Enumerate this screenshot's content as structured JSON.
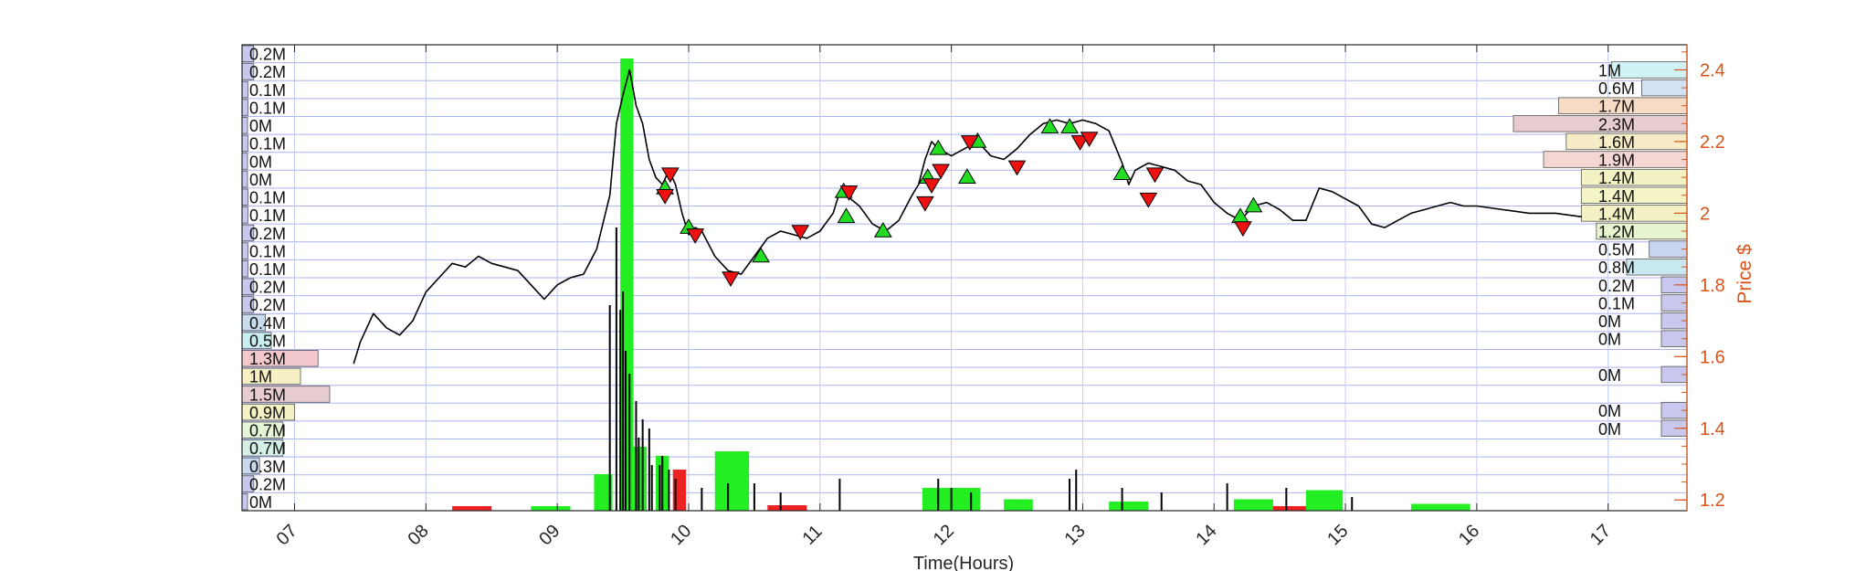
{
  "chart_data": {
    "type": "line",
    "title": "",
    "xlabel": "Time(Hours)",
    "ylabel": "Price $",
    "xlim": [
      6.6,
      17.6
    ],
    "ylim": [
      1.17,
      2.47
    ],
    "grid": true,
    "x_ticks": [
      7,
      8,
      9,
      10,
      11,
      12,
      13,
      14,
      15,
      16,
      17
    ],
    "x_tick_labels": [
      "07",
      "08",
      "09",
      "10",
      "11",
      "12",
      "13",
      "14",
      "15",
      "16",
      "17"
    ],
    "y_ticks": [
      1.2,
      1.4,
      1.6,
      1.8,
      2.0,
      2.2,
      2.4
    ],
    "y_tick_labels": [
      "1.2",
      "1.4",
      "1.6",
      "1.8",
      "2",
      "2.2",
      "2.4"
    ],
    "colors": {
      "axis_right": "#d95319",
      "grid_line": "#aab4f0",
      "buy": "#22dd22",
      "sell": "#ee1111",
      "volume_up": "#22ee22",
      "volume_down": "#ee2222",
      "price": "#000000"
    },
    "price_series": {
      "name": "",
      "x": [
        7.45,
        7.5,
        7.6,
        7.7,
        7.8,
        7.9,
        8.0,
        8.1,
        8.2,
        8.3,
        8.4,
        8.5,
        8.6,
        8.7,
        8.8,
        8.9,
        9.0,
        9.1,
        9.2,
        9.3,
        9.4,
        9.45,
        9.5,
        9.55,
        9.6,
        9.65,
        9.7,
        9.75,
        9.8,
        9.85,
        9.9,
        9.95,
        10.0,
        10.05,
        10.1,
        10.2,
        10.3,
        10.4,
        10.5,
        10.6,
        10.7,
        10.8,
        10.9,
        11.0,
        11.1,
        11.15,
        11.2,
        11.3,
        11.4,
        11.5,
        11.6,
        11.7,
        11.75,
        11.8,
        11.85,
        11.9,
        12.0,
        12.1,
        12.2,
        12.3,
        12.4,
        12.5,
        12.6,
        12.7,
        12.8,
        12.9,
        13.0,
        13.1,
        13.2,
        13.3,
        13.35,
        13.4,
        13.5,
        13.6,
        13.7,
        13.8,
        13.9,
        14.0,
        14.1,
        14.2,
        14.3,
        14.4,
        14.5,
        14.6,
        14.7,
        14.8,
        14.9,
        15.0,
        15.1,
        15.2,
        15.3,
        15.4,
        15.5,
        15.6,
        15.7,
        15.8,
        15.9,
        16.0,
        16.2,
        16.4,
        16.6,
        16.8
      ],
      "y": [
        1.58,
        1.64,
        1.72,
        1.68,
        1.66,
        1.7,
        1.78,
        1.82,
        1.86,
        1.85,
        1.88,
        1.86,
        1.85,
        1.84,
        1.8,
        1.76,
        1.8,
        1.82,
        1.83,
        1.9,
        2.05,
        2.25,
        2.33,
        2.4,
        2.3,
        2.25,
        2.15,
        2.1,
        2.08,
        2.12,
        2.08,
        2.0,
        1.94,
        1.96,
        1.95,
        1.88,
        1.84,
        1.83,
        1.88,
        1.93,
        1.95,
        1.94,
        1.93,
        1.95,
        2.0,
        2.06,
        2.05,
        2.02,
        1.97,
        1.95,
        1.98,
        2.05,
        2.08,
        2.15,
        2.2,
        2.18,
        2.16,
        2.18,
        2.2,
        2.16,
        2.15,
        2.18,
        2.22,
        2.25,
        2.26,
        2.25,
        2.26,
        2.25,
        2.23,
        2.14,
        2.08,
        2.12,
        2.14,
        2.13,
        2.12,
        2.09,
        2.08,
        2.03,
        2.0,
        1.98,
        2.02,
        2.03,
        2.01,
        1.98,
        1.98,
        2.07,
        2.06,
        2.04,
        2.02,
        1.97,
        1.96,
        1.98,
        2.0,
        2.01,
        2.02,
        2.03,
        2.02,
        2.02,
        2.01,
        2.0,
        2.0,
        1.99
      ]
    },
    "buy_markers": {
      "x": [
        9.82,
        10.0,
        10.55,
        11.18,
        11.2,
        11.48,
        11.82,
        11.9,
        12.12,
        12.2,
        12.75,
        12.9,
        13.3,
        14.2,
        14.3
      ],
      "y": [
        2.07,
        1.96,
        1.88,
        2.06,
        1.99,
        1.95,
        2.1,
        2.18,
        2.1,
        2.2,
        2.24,
        2.24,
        2.11,
        1.99,
        2.02
      ]
    },
    "sell_markers": {
      "x": [
        9.82,
        9.86,
        10.05,
        10.32,
        10.85,
        11.22,
        11.8,
        11.85,
        11.92,
        12.14,
        12.5,
        12.98,
        13.05,
        13.5,
        13.55,
        14.22
      ],
      "y": [
        2.05,
        2.11,
        1.94,
        1.82,
        1.95,
        2.06,
        2.03,
        2.08,
        2.12,
        2.2,
        2.13,
        2.2,
        2.21,
        2.04,
        2.11,
        1.96
      ]
    },
    "volume_blocks": [
      {
        "x0": 9.28,
        "x1": 9.42,
        "value": 0.08,
        "direction": "up"
      },
      {
        "x0": 9.48,
        "x1": 9.58,
        "value": 0.99,
        "direction": "up"
      },
      {
        "x0": 9.58,
        "x1": 9.68,
        "value": 0.14,
        "direction": "up"
      },
      {
        "x0": 9.75,
        "x1": 9.85,
        "value": 0.12,
        "direction": "up"
      },
      {
        "x0": 9.88,
        "x1": 9.98,
        "value": 0.09,
        "direction": "down"
      },
      {
        "x0": 10.2,
        "x1": 10.46,
        "value": 0.13,
        "direction": "up"
      },
      {
        "x0": 11.78,
        "x1": 12.22,
        "value": 0.05,
        "direction": "up"
      },
      {
        "x0": 12.4,
        "x1": 12.62,
        "value": 0.025,
        "direction": "up"
      },
      {
        "x0": 13.2,
        "x1": 13.5,
        "value": 0.02,
        "direction": "up"
      },
      {
        "x0": 14.15,
        "x1": 14.45,
        "value": 0.025,
        "direction": "up"
      },
      {
        "x0": 14.45,
        "x1": 14.7,
        "value": 0.01,
        "direction": "down"
      },
      {
        "x0": 14.7,
        "x1": 14.98,
        "value": 0.045,
        "direction": "up"
      },
      {
        "x0": 15.5,
        "x1": 15.95,
        "value": 0.015,
        "direction": "up"
      },
      {
        "x0": 8.2,
        "x1": 8.5,
        "value": 0.01,
        "direction": "down"
      },
      {
        "x0": 8.8,
        "x1": 9.1,
        "value": 0.01,
        "direction": "up"
      },
      {
        "x0": 10.6,
        "x1": 10.9,
        "value": 0.012,
        "direction": "down"
      }
    ],
    "volume_spikes": {
      "x": [
        9.4,
        9.45,
        9.48,
        9.5,
        9.52,
        9.55,
        9.6,
        9.62,
        9.65,
        9.7,
        9.72,
        9.78,
        9.8,
        9.85,
        9.9,
        10.1,
        10.3,
        10.5,
        10.7,
        11.15,
        11.9,
        12.0,
        12.15,
        12.9,
        12.95,
        13.3,
        13.6,
        14.1,
        14.55,
        15.05
      ],
      "y": [
        0.45,
        0.62,
        0.44,
        0.48,
        0.35,
        0.3,
        0.24,
        0.16,
        0.2,
        0.18,
        0.1,
        0.1,
        0.12,
        0.09,
        0.07,
        0.05,
        0.06,
        0.06,
        0.04,
        0.07,
        0.07,
        0.05,
        0.04,
        0.07,
        0.09,
        0.05,
        0.04,
        0.06,
        0.05,
        0.03
      ]
    },
    "left_volume_profile": {
      "labels": [
        "0.2M",
        "0.2M",
        "0.1M",
        "0.1M",
        "0M",
        "0.1M",
        "0M",
        "0M",
        "0.1M",
        "0.1M",
        "0.2M",
        "0.1M",
        "0.1M",
        "0.2M",
        "0.2M",
        "0.4M",
        "0.5M",
        "1.3M",
        "1M",
        "1.5M",
        "0.9M",
        "0.7M",
        "0.7M",
        "0.3M",
        "0.2M",
        "0M"
      ],
      "values": [
        0.2,
        0.2,
        0.1,
        0.1,
        0.0,
        0.1,
        0.0,
        0.0,
        0.1,
        0.1,
        0.2,
        0.1,
        0.1,
        0.2,
        0.2,
        0.4,
        0.5,
        1.3,
        1.0,
        1.5,
        0.9,
        0.7,
        0.7,
        0.3,
        0.2,
        0.0
      ],
      "colors": [
        "#c8c8ee",
        "#c8c8ee",
        "#c8c8ee",
        "#c8c8ee",
        "#c8c8ee",
        "#c8c8ee",
        "#c8c8ee",
        "#c8c8ee",
        "#c8c8ee",
        "#c8c8ee",
        "#c8c8ee",
        "#c8c8ee",
        "#c8c8ee",
        "#c8c8ee",
        "#c8c8ee",
        "#c8ddee",
        "#c8eef0",
        "#f2c8cc",
        "#f6f0c4",
        "#e8cdd0",
        "#f4f2c4",
        "#e4f6d6",
        "#d4f0e6",
        "#c8d8ee",
        "#c8c8ee",
        "#c8c8ee"
      ]
    },
    "right_volume_profile": {
      "labels": [
        "1M",
        "0.6M",
        "1.7M",
        "2.3M",
        "1.6M",
        "1.9M",
        "1.4M",
        "1.4M",
        "1.4M",
        "1.2M",
        "0.5M",
        "0.8M",
        "0.2M",
        "0.1M",
        "0M",
        "0M",
        "0M",
        "0M",
        "0M"
      ],
      "values": [
        1.0,
        0.6,
        1.7,
        2.3,
        1.6,
        1.9,
        1.4,
        1.4,
        1.4,
        1.2,
        0.5,
        0.8,
        0.2,
        0.1,
        0.0,
        0.0,
        0.0,
        0.0,
        0.0
      ],
      "y": [
        2.4,
        2.35,
        2.3,
        2.25,
        2.2,
        2.15,
        2.1,
        2.05,
        2.0,
        1.95,
        1.9,
        1.85,
        1.8,
        1.75,
        1.7,
        1.65,
        1.55,
        1.45,
        1.4
      ],
      "colors": [
        "#d0f4f6",
        "#d2e2f4",
        "#f6dcc4",
        "#e8cdd0",
        "#f6ecc6",
        "#f6d6d2",
        "#f2f2c4",
        "#f4f4c6",
        "#f4f2c4",
        "#e6f4d0",
        "#c8d4f0",
        "#c8e8f0",
        "#c8c8ee",
        "#c8c8ee",
        "#c8c8ee",
        "#c8c8ee",
        "#c8c8ee",
        "#c8c8ee",
        "#c8c8ee"
      ]
    }
  }
}
